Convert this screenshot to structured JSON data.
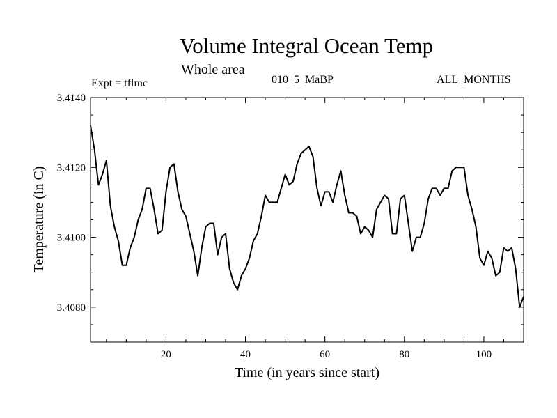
{
  "header": {
    "title": "Volume Integral Ocean Temp",
    "subtitle": "Whole area",
    "expt_label": "Expt = tflmc",
    "case_label": "010_5_MaBP",
    "months_label": "ALL_MONTHS"
  },
  "chart_data": {
    "type": "line",
    "title": "Volume Integral Ocean Temp",
    "xlabel": "Time (in years since start)",
    "ylabel": "Temperature (in C)",
    "xlim": [
      1,
      110
    ],
    "ylim": [
      3.407,
      3.414
    ],
    "x_ticks": [
      20,
      40,
      60,
      80,
      100
    ],
    "x_tick_labels": [
      "20",
      "40",
      "60",
      "80",
      "100"
    ],
    "y_ticks": [
      3.408,
      3.41,
      3.412,
      3.414
    ],
    "y_tick_labels": [
      "3.4080",
      "3.4100",
      "3.4120",
      "3.4140"
    ],
    "grid": false,
    "series": [
      {
        "name": "Volume Integral Ocean Temp",
        "color": "#000000",
        "x": [
          1,
          2,
          3,
          4,
          5,
          6,
          7,
          8,
          9,
          10,
          11,
          12,
          13,
          14,
          15,
          16,
          17,
          18,
          19,
          20,
          21,
          22,
          23,
          24,
          25,
          26,
          27,
          28,
          29,
          30,
          31,
          32,
          33,
          34,
          35,
          36,
          37,
          38,
          39,
          40,
          41,
          42,
          43,
          44,
          45,
          46,
          47,
          48,
          49,
          50,
          51,
          52,
          53,
          54,
          55,
          56,
          57,
          58,
          59,
          60,
          61,
          62,
          63,
          64,
          65,
          66,
          67,
          68,
          69,
          70,
          71,
          72,
          73,
          74,
          75,
          76,
          77,
          78,
          79,
          80,
          81,
          82,
          83,
          84,
          85,
          86,
          87,
          88,
          89,
          90,
          91,
          92,
          93,
          94,
          95,
          96,
          97,
          98,
          99,
          100,
          101,
          102,
          103,
          104,
          105,
          106,
          107,
          108,
          109,
          110
        ],
        "values": [
          3.4132,
          3.4125,
          3.4115,
          3.4118,
          3.4122,
          3.4109,
          3.4103,
          3.4099,
          3.4092,
          3.4092,
          3.4097,
          3.41,
          3.4105,
          3.4108,
          3.4114,
          3.4114,
          3.4108,
          3.4101,
          3.4102,
          3.4113,
          3.412,
          3.4121,
          3.4113,
          3.4108,
          3.4106,
          3.4101,
          3.4096,
          3.4089,
          3.4097,
          3.4103,
          3.4104,
          3.4104,
          3.4095,
          3.41,
          3.4101,
          3.4091,
          3.4087,
          3.4085,
          3.4089,
          3.4091,
          3.4094,
          3.4099,
          3.4101,
          3.4106,
          3.4112,
          3.411,
          3.411,
          3.411,
          3.4114,
          3.4118,
          3.4115,
          3.4116,
          3.4121,
          3.4124,
          3.4125,
          3.4126,
          3.4123,
          3.4114,
          3.4109,
          3.4113,
          3.4113,
          3.411,
          3.4115,
          3.4119,
          3.4112,
          3.4107,
          3.4107,
          3.4106,
          3.4101,
          3.4103,
          3.4102,
          3.41,
          3.4108,
          3.411,
          3.4112,
          3.4111,
          3.4101,
          3.4101,
          3.4111,
          3.4112,
          3.4104,
          3.4096,
          3.41,
          3.41,
          3.4104,
          3.4111,
          3.4114,
          3.4114,
          3.4112,
          3.4114,
          3.4114,
          3.4119,
          3.412,
          3.412,
          3.412,
          3.4112,
          3.4108,
          3.4103,
          3.4094,
          3.4092,
          3.4096,
          3.4094,
          3.4089,
          3.409,
          3.4097,
          3.4096,
          3.4097,
          3.4091,
          3.408,
          3.4083
        ]
      }
    ]
  }
}
